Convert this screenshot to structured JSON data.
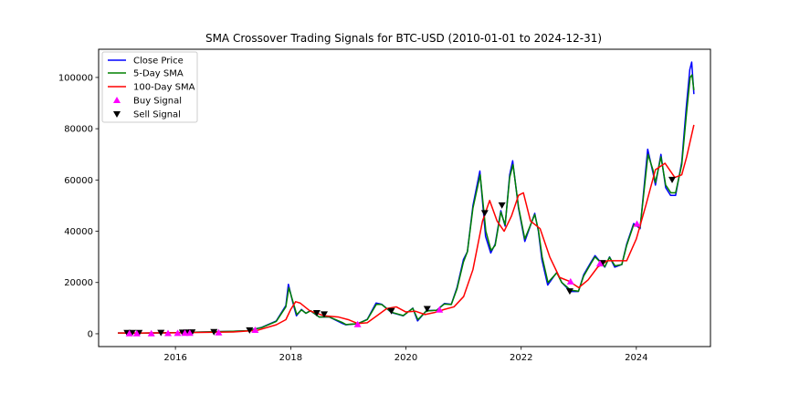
{
  "chart_data": {
    "type": "line",
    "title": "SMA Crossover Trading Signals for BTC-USD (2010-01-01 to 2024-12-31)",
    "xlabel": "",
    "ylabel": "",
    "x_range": [
      "2014-09-01",
      "2025-04-15"
    ],
    "ylim": [
      -5000,
      111000
    ],
    "grid": false,
    "legend_position": "top-left",
    "x_ticks": [
      {
        "date": "2016-01-01",
        "label": "2016"
      },
      {
        "date": "2018-01-01",
        "label": "2018"
      },
      {
        "date": "2020-01-01",
        "label": "2020"
      },
      {
        "date": "2022-01-01",
        "label": "2022"
      },
      {
        "date": "2024-01-01",
        "label": "2024"
      }
    ],
    "y_ticks": [
      0,
      20000,
      40000,
      60000,
      80000,
      100000
    ],
    "series": [
      {
        "name": "Close Price",
        "color": "#0000ff",
        "x": [
          "2015-01-01",
          "2015-06-01",
          "2016-01-01",
          "2016-06-01",
          "2017-01-01",
          "2017-04-01",
          "2017-07-01",
          "2017-10-01",
          "2017-12-01",
          "2017-12-17",
          "2018-01-15",
          "2018-02-06",
          "2018-03-10",
          "2018-04-06",
          "2018-05-05",
          "2018-07-01",
          "2018-09-01",
          "2018-11-25",
          "2018-12-15",
          "2019-03-01",
          "2019-05-01",
          "2019-06-26",
          "2019-08-01",
          "2019-10-01",
          "2019-12-15",
          "2020-02-14",
          "2020-03-15",
          "2020-05-10",
          "2020-07-15",
          "2020-09-01",
          "2020-10-15",
          "2020-11-20",
          "2020-12-31",
          "2021-01-25",
          "2021-03-01",
          "2021-04-14",
          "2021-05-20",
          "2021-06-22",
          "2021-07-20",
          "2021-08-25",
          "2021-09-21",
          "2021-10-20",
          "2021-11-08",
          "2021-12-15",
          "2022-01-24",
          "2022-03-28",
          "2022-04-20",
          "2022-05-12",
          "2022-06-18",
          "2022-08-15",
          "2022-09-15",
          "2022-11-09",
          "2022-12-30",
          "2023-02-01",
          "2023-03-20",
          "2023-04-14",
          "2023-06-15",
          "2023-07-15",
          "2023-08-17",
          "2023-10-01",
          "2023-11-01",
          "2023-12-15",
          "2024-01-25",
          "2024-03-13",
          "2024-04-15",
          "2024-05-01",
          "2024-06-05",
          "2024-07-05",
          "2024-08-05",
          "2024-09-06",
          "2024-10-15",
          "2024-11-12",
          "2024-12-05",
          "2024-12-17",
          "2024-12-31"
        ],
        "values": [
          300,
          230,
          430,
          670,
          960,
          1200,
          2500,
          5000,
          11000,
          19300,
          12000,
          7000,
          9500,
          8000,
          9000,
          6500,
          6600,
          4000,
          3500,
          3900,
          5600,
          12000,
          11500,
          8300,
          7000,
          10000,
          5000,
          9000,
          9200,
          11800,
          11500,
          18000,
          29000,
          32000,
          50000,
          63500,
          38000,
          31500,
          35000,
          48000,
          42000,
          62000,
          67500,
          49000,
          36000,
          47000,
          40000,
          29000,
          19000,
          24000,
          20000,
          16500,
          16500,
          23000,
          28000,
          30500,
          26000,
          30000,
          26000,
          27000,
          35000,
          43000,
          41000,
          72000,
          63000,
          58000,
          70000,
          57000,
          54000,
          54000,
          67000,
          88000,
          103000,
          106000,
          93500
        ]
      },
      {
        "name": "5-Day SMA",
        "color": "#008000",
        "x": [
          "2015-01-01",
          "2015-06-01",
          "2016-01-01",
          "2016-06-01",
          "2017-01-01",
          "2017-04-01",
          "2017-07-01",
          "2017-10-01",
          "2017-12-01",
          "2017-12-20",
          "2018-01-15",
          "2018-02-08",
          "2018-03-10",
          "2018-04-08",
          "2018-05-07",
          "2018-07-01",
          "2018-09-01",
          "2018-11-27",
          "2018-12-17",
          "2019-03-01",
          "2019-05-01",
          "2019-06-28",
          "2019-08-01",
          "2019-10-01",
          "2019-12-15",
          "2020-02-14",
          "2020-03-17",
          "2020-05-10",
          "2020-07-15",
          "2020-09-01",
          "2020-10-15",
          "2020-11-20",
          "2020-12-31",
          "2021-01-25",
          "2021-03-01",
          "2021-04-16",
          "2021-05-22",
          "2021-06-24",
          "2021-07-20",
          "2021-08-25",
          "2021-09-21",
          "2021-10-20",
          "2021-11-10",
          "2021-12-15",
          "2022-01-24",
          "2022-03-28",
          "2022-04-20",
          "2022-05-14",
          "2022-06-20",
          "2022-08-15",
          "2022-09-15",
          "2022-11-11",
          "2022-12-30",
          "2023-02-01",
          "2023-03-20",
          "2023-04-14",
          "2023-06-15",
          "2023-07-15",
          "2023-08-19",
          "2023-10-01",
          "2023-11-01",
          "2023-12-15",
          "2024-01-25",
          "2024-03-15",
          "2024-04-15",
          "2024-05-01",
          "2024-06-05",
          "2024-07-05",
          "2024-08-07",
          "2024-09-06",
          "2024-10-15",
          "2024-11-14",
          "2024-12-07",
          "2024-12-19",
          "2024-12-31"
        ],
        "values": [
          300,
          230,
          430,
          670,
          960,
          1200,
          2400,
          4800,
          10500,
          18000,
          12500,
          7500,
          9300,
          8000,
          9000,
          6500,
          6600,
          4300,
          3600,
          3900,
          5500,
          11500,
          11400,
          8400,
          7100,
          9900,
          5500,
          8900,
          9200,
          11600,
          11400,
          17500,
          28000,
          32000,
          49000,
          62000,
          40000,
          32500,
          34500,
          47500,
          42500,
          61000,
          66000,
          49500,
          37000,
          46500,
          40500,
          30000,
          20000,
          23800,
          20000,
          17000,
          16600,
          22500,
          27500,
          30000,
          26200,
          29800,
          26500,
          27000,
          34500,
          42500,
          41500,
          70000,
          64000,
          59000,
          69000,
          58000,
          55000,
          55000,
          66000,
          86000,
          100000,
          101000,
          95000
        ]
      },
      {
        "name": "100-Day SMA",
        "color": "#ff0000",
        "x": [
          "2015-01-01",
          "2015-06-01",
          "2016-01-01",
          "2016-06-01",
          "2017-01-01",
          "2017-06-01",
          "2017-10-01",
          "2017-12-01",
          "2018-01-01",
          "2018-02-01",
          "2018-03-01",
          "2018-05-01",
          "2018-08-01",
          "2018-11-01",
          "2019-01-01",
          "2019-03-01",
          "2019-05-01",
          "2019-07-01",
          "2019-09-01",
          "2019-11-01",
          "2020-01-01",
          "2020-03-01",
          "2020-05-01",
          "2020-07-01",
          "2020-09-01",
          "2020-11-01",
          "2021-01-01",
          "2021-03-01",
          "2021-05-01",
          "2021-06-15",
          "2021-08-01",
          "2021-09-15",
          "2021-11-01",
          "2021-12-15",
          "2022-01-15",
          "2022-03-01",
          "2022-05-01",
          "2022-07-01",
          "2022-09-01",
          "2022-11-01",
          "2023-01-01",
          "2023-03-01",
          "2023-05-01",
          "2023-07-01",
          "2023-09-01",
          "2023-11-01",
          "2024-01-01",
          "2024-03-01",
          "2024-05-01",
          "2024-07-01",
          "2024-09-01",
          "2024-10-15",
          "2024-11-15",
          "2024-12-31"
        ],
        "values": [
          300,
          280,
          380,
          500,
          700,
          1300,
          3500,
          5500,
          9500,
          12500,
          12000,
          9000,
          7000,
          6500,
          5500,
          4000,
          4300,
          7000,
          9800,
          10500,
          8500,
          8800,
          7500,
          8300,
          9500,
          10500,
          14500,
          25000,
          44000,
          52000,
          44000,
          40000,
          46000,
          54000,
          55000,
          44000,
          41000,
          30000,
          22000,
          20500,
          18000,
          21000,
          26000,
          28500,
          28500,
          28500,
          37000,
          50000,
          64000,
          66500,
          61000,
          62000,
          69000,
          81500
        ]
      }
    ],
    "buy_signals": {
      "name": "Buy Signal",
      "color": "#ff00ff",
      "x": [
        "2015-03-15",
        "2015-05-01",
        "2015-08-01",
        "2015-11-15",
        "2016-01-15",
        "2016-03-01",
        "2016-04-01",
        "2016-10-01",
        "2017-05-20",
        "2019-03-01",
        "2020-08-01",
        "2022-11-10",
        "2023-05-15",
        "2024-01-05"
      ],
      "y": [
        250,
        250,
        250,
        350,
        380,
        420,
        430,
        600,
        1600,
        3800,
        9500,
        20500,
        27500,
        43000
      ]
    },
    "sell_signals": {
      "name": "Sell Signal",
      "color": "#000000",
      "x": [
        "2015-03-01",
        "2015-04-01",
        "2015-05-15",
        "2015-10-01",
        "2016-02-15",
        "2016-03-15",
        "2016-04-15",
        "2016-09-01",
        "2017-04-15",
        "2018-06-15",
        "2018-08-01",
        "2019-10-01",
        "2020-05-15",
        "2021-05-15",
        "2021-09-01",
        "2022-11-05",
        "2023-06-01",
        "2024-08-15"
      ],
      "y": [
        250,
        250,
        250,
        300,
        400,
        430,
        450,
        620,
        1250,
        8000,
        7500,
        8800,
        9600,
        47000,
        50000,
        16500,
        27500,
        60000
      ]
    }
  }
}
